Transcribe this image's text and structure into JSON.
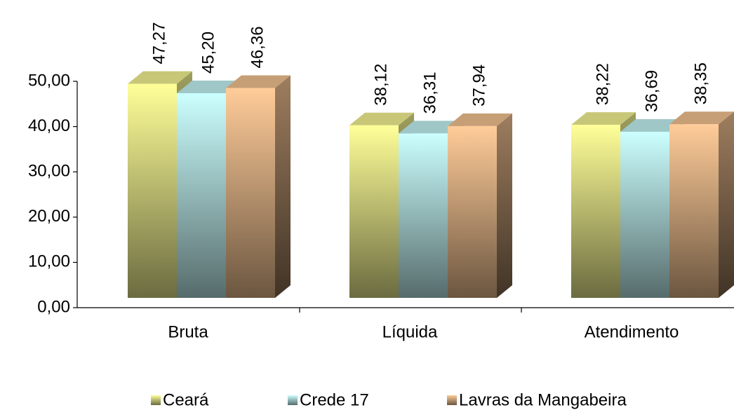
{
  "chart_data": {
    "type": "bar3d",
    "categories": [
      "Bruta",
      "Líquida",
      "Atendimento"
    ],
    "series": [
      {
        "name": "Ceará",
        "color": "#ffff99",
        "values": [
          47.27,
          38.12,
          38.22
        ],
        "value_labels": [
          "47,27",
          "38,12",
          "38,22"
        ]
      },
      {
        "name": "Crede 17",
        "color": "#ccffff",
        "values": [
          45.2,
          36.31,
          36.69
        ],
        "value_labels": [
          "45,20",
          "36,31",
          "36,69"
        ]
      },
      {
        "name": "Lavras da Mangabeira",
        "color": "#ffcc99",
        "values": [
          46.36,
          37.94,
          38.35
        ],
        "value_labels": [
          "46,36",
          "37,94",
          "38,35"
        ]
      }
    ],
    "ylim": [
      0,
      50
    ],
    "yticks": [
      {
        "value": 0,
        "label": "0,00"
      },
      {
        "value": 10,
        "label": "10,00"
      },
      {
        "value": 20,
        "label": "20,00"
      },
      {
        "value": 30,
        "label": "30,00"
      },
      {
        "value": 40,
        "label": "40,00"
      },
      {
        "value": 50,
        "label": "50,00"
      }
    ],
    "legend": "bottom"
  }
}
